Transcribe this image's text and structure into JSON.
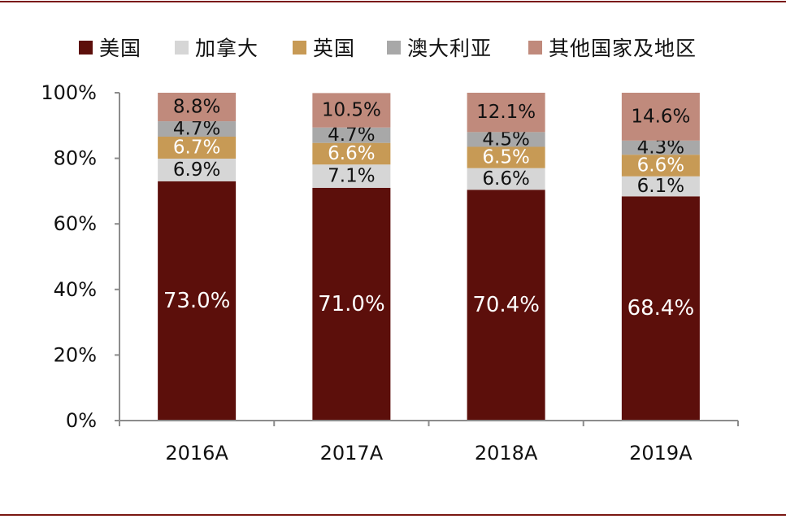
{
  "chart_data": {
    "type": "bar",
    "stacked": true,
    "categories": [
      "2016A",
      "2017A",
      "2018A",
      "2019A"
    ],
    "series": [
      {
        "name": "美国",
        "color": "#5c0f0b",
        "label_color": "#ffffff",
        "values": [
          73.0,
          71.0,
          70.4,
          68.4
        ],
        "labels": [
          "73.0%",
          "71.0%",
          "70.4%",
          "68.4%"
        ]
      },
      {
        "name": "加拿大",
        "color": "#d6d6d6",
        "label_color": "#111111",
        "values": [
          6.9,
          7.1,
          6.6,
          6.1
        ],
        "labels": [
          "6.9%",
          "7.1%",
          "6.6%",
          "6.1%"
        ]
      },
      {
        "name": "英国",
        "color": "#c79a55",
        "label_color": "#ffffff",
        "values": [
          6.7,
          6.6,
          6.5,
          6.6
        ],
        "labels": [
          "6.7%",
          "6.6%",
          "6.5%",
          "6.6%"
        ]
      },
      {
        "name": "澳大利亚",
        "color": "#a8a8a8",
        "label_color": "#111111",
        "values": [
          4.7,
          4.7,
          4.5,
          4.3
        ],
        "labels": [
          "4.7%",
          "4.7%",
          "4.5%",
          "4.3%"
        ]
      },
      {
        "name": "其他国家及地区",
        "color": "#c08a7c",
        "label_color": "#111111",
        "values": [
          8.8,
          10.5,
          12.1,
          14.6
        ],
        "labels": [
          "8.8%",
          "10.5%",
          "12.1%",
          "14.6%"
        ]
      }
    ],
    "ylim": [
      0,
      100
    ],
    "yticks": [
      0,
      20,
      40,
      60,
      80,
      100
    ],
    "ytick_labels": [
      "0%",
      "20%",
      "40%",
      "60%",
      "80%",
      "100%"
    ],
    "legend_position": "top",
    "grid": false
  }
}
